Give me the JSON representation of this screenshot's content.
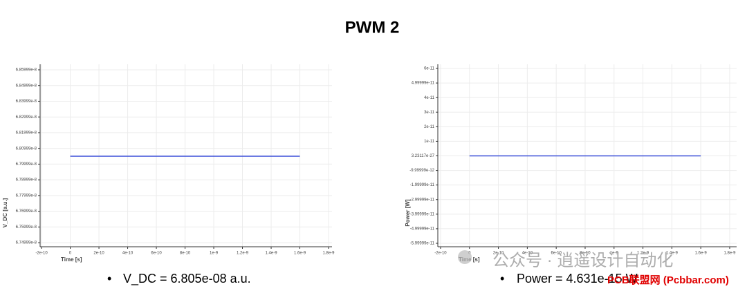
{
  "title": "PWM 2",
  "chart_data": [
    {
      "type": "line",
      "ylabel": "V_DC [a.u.]",
      "xlabel": "Time [s]",
      "x": [
        0,
        1.6e-09
      ],
      "series": [
        {
          "color": "#3b4fd8",
          "values": [
            6.805e-08,
            6.805e-08
          ]
        }
      ],
      "xlim": [
        -2.1e-10,
        1.824e-09
      ],
      "xticks": [
        -2e-10,
        0,
        2e-10,
        4e-10,
        6e-10,
        8e-10,
        1e-09,
        1.2e-09,
        1.4e-09,
        1.6e-09,
        1.8e-09
      ],
      "ylim": [
        6.7474e-08,
        6.8635e-08
      ],
      "yticks": [
        6.74999e-08,
        6.75999e-08,
        6.76999e-08,
        6.77999e-08,
        6.78999e-08,
        6.79999e-08,
        6.80999e-08,
        6.81999e-08,
        6.82999e-08,
        6.83999e-08,
        6.84999e-08,
        6.85999e-08
      ],
      "grid": true
    },
    {
      "type": "line",
      "ylabel": "Power [W]",
      "xlabel": "Time [s]",
      "x": [
        0,
        1.6e-09
      ],
      "series": [
        {
          "color": "#3b4fd8",
          "values": [
            4.631e-15,
            4.631e-15
          ]
        }
      ],
      "xlim": [
        -2.19e-10,
        1.848e-09
      ],
      "xticks": [
        -2e-10,
        0,
        2e-10,
        4e-10,
        6e-10,
        8e-10,
        1e-09,
        1.2e-09,
        1.4e-09,
        1.6e-09,
        1.8e-09
      ],
      "ylim": [
        -6.237e-11,
        6.285e-11
      ],
      "yticks": [
        -5.99999e-11,
        -4.99999e-11,
        -3.99999e-11,
        -2.99999e-11,
        -1.99999e-11,
        -9.99999e-12,
        3.23117e-27,
        1e-11,
        2e-11,
        3e-11,
        4e-11,
        4.99999e-11,
        6e-11
      ],
      "grid": true
    }
  ],
  "bullets": [
    "V_DC = 6.805e-08 a.u.",
    "Power = 4.631e-15 W"
  ],
  "watermarks": [
    "公众号 · 逍遥设计自动化",
    "PCB联盟网 (Pcbbar.com)"
  ]
}
